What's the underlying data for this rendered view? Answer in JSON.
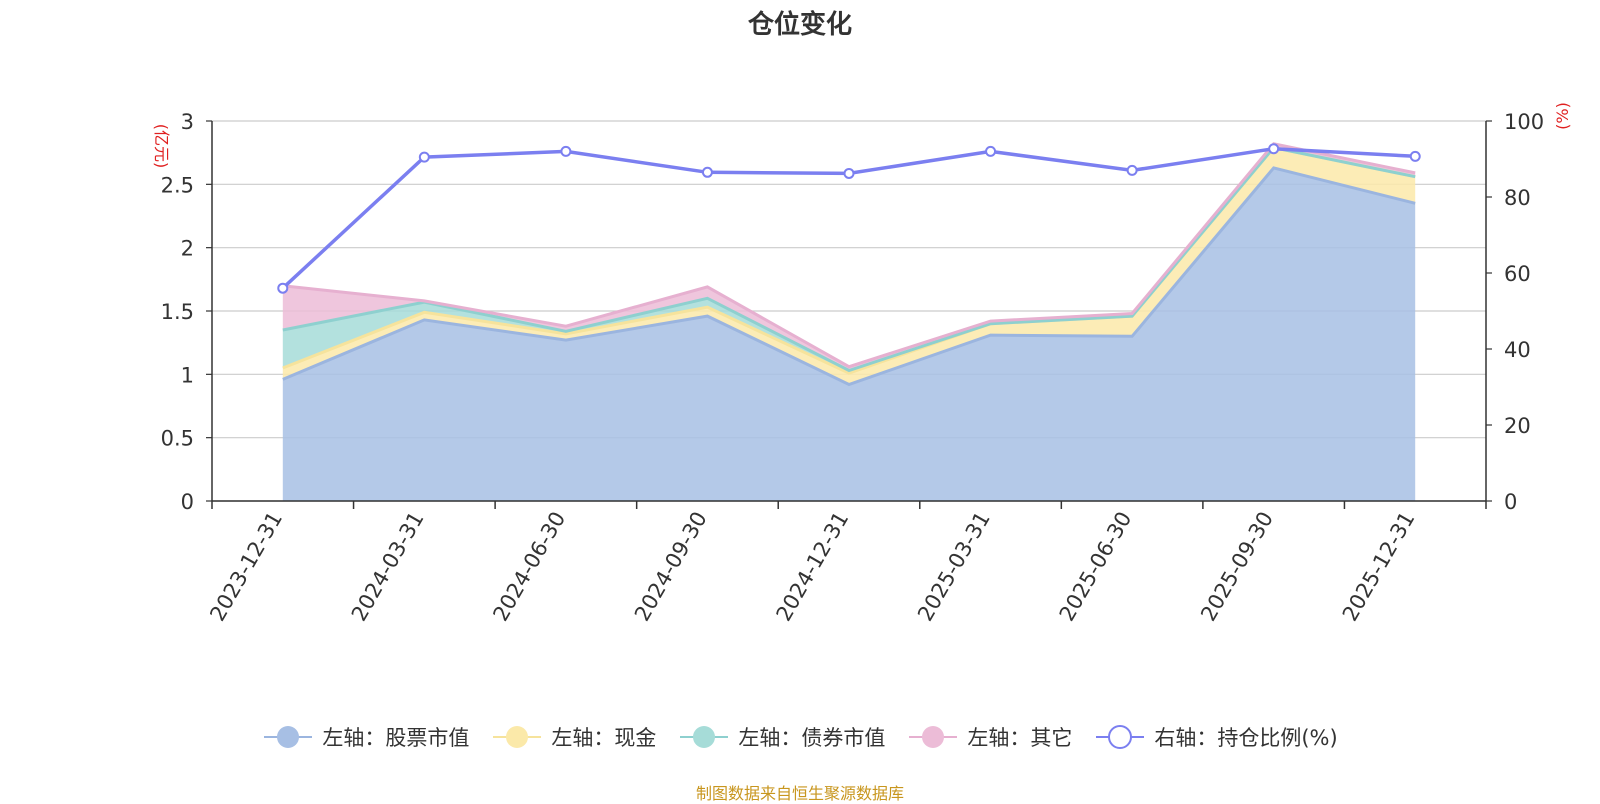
{
  "chart_data": {
    "type": "area",
    "title": "仓位变化",
    "x": [
      "2023-12-31",
      "2024-03-31",
      "2024-06-30",
      "2024-09-30",
      "2024-12-31",
      "2025-03-31",
      "2025-06-30",
      "2025-09-30",
      "2025-12-31"
    ],
    "y_left_unit": "(亿元)",
    "y_right_unit": "(%)",
    "y_left_ticks": [
      "0",
      "0.5",
      "1",
      "1.5",
      "2",
      "2.5",
      "3"
    ],
    "y_right_ticks": [
      "0",
      "20",
      "40",
      "60",
      "80",
      "100"
    ],
    "ylim_left": [
      0,
      3
    ],
    "ylim_right": [
      0,
      100
    ],
    "grid": true,
    "legend_position": "bottom",
    "series": [
      {
        "name": "左轴：股票市值",
        "axis": "left",
        "stacked": true,
        "color": "#a7bfe4",
        "line_color": "#9bb5df",
        "values": [
          0.96,
          1.43,
          1.27,
          1.46,
          0.92,
          1.31,
          1.3,
          2.63,
          2.35
        ]
      },
      {
        "name": "左轴：现金",
        "axis": "left",
        "stacked": true,
        "color": "#fbe9a9",
        "line_color": "#f6e39c",
        "values": [
          0.09,
          0.06,
          0.05,
          0.07,
          0.09,
          0.09,
          0.16,
          0.16,
          0.21
        ]
      },
      {
        "name": "左轴：债券市值",
        "axis": "left",
        "stacked": true,
        "color": "#a6dcd8",
        "line_color": "#8ed0cf",
        "values": [
          0.3,
          0.08,
          0.02,
          0.07,
          0.02,
          0.0,
          0.0,
          0.0,
          0.0
        ]
      },
      {
        "name": "左轴：其它",
        "axis": "left",
        "stacked": true,
        "color": "#ecbcd7",
        "line_color": "#e6b0d0",
        "values": [
          0.35,
          0.01,
          0.04,
          0.09,
          0.03,
          0.02,
          0.02,
          0.03,
          0.03
        ]
      },
      {
        "name": "右轴：持仓比例(%)",
        "axis": "right",
        "type": "line",
        "color": "#7b7ff0",
        "values": [
          56.0,
          90.5,
          92.0,
          86.5,
          86.2,
          92.0,
          87.0,
          92.7,
          90.7
        ]
      }
    ]
  },
  "source_note": "制图数据来自恒生聚源数据库"
}
